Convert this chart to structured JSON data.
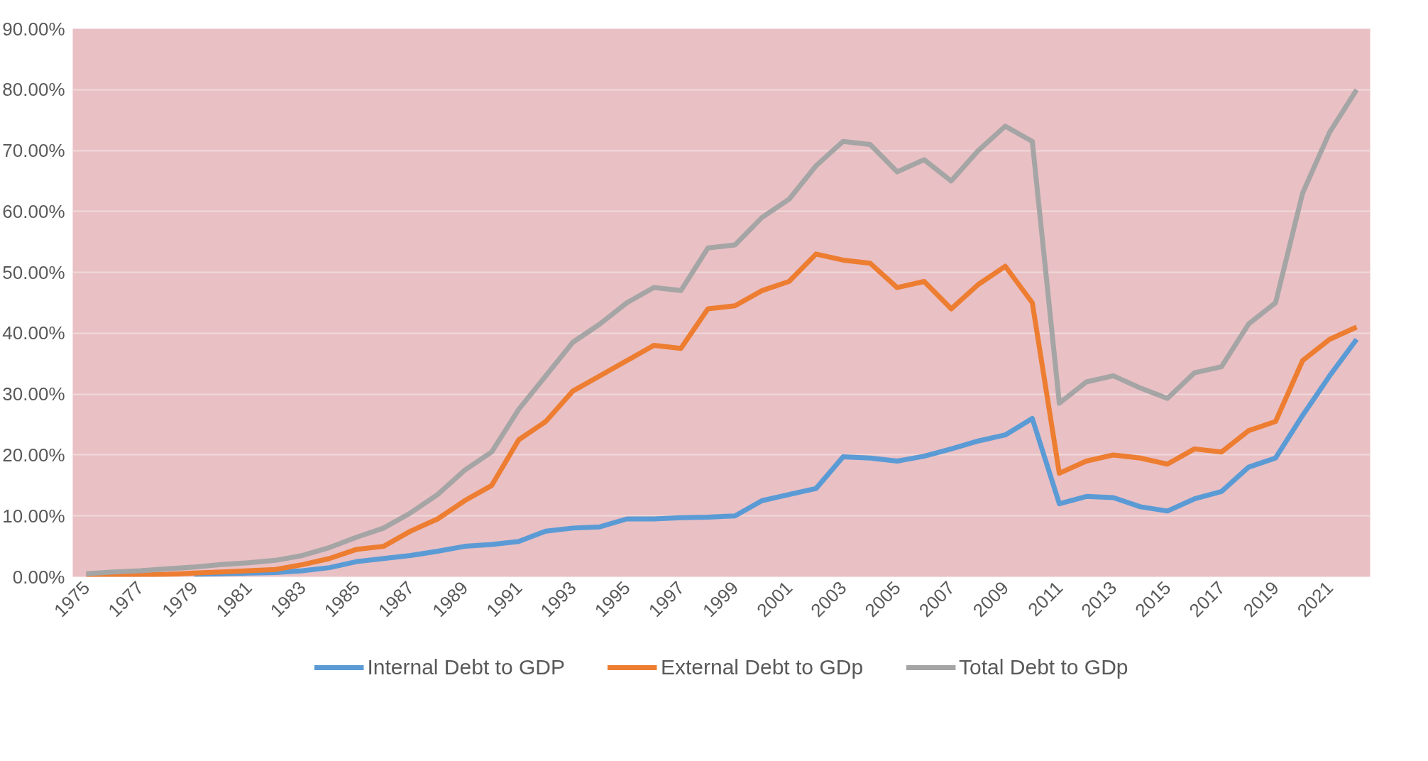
{
  "chart_data": {
    "type": "line",
    "categories": [
      "1975",
      null,
      "1977",
      null,
      "1979",
      null,
      "1981",
      null,
      "1983",
      null,
      "1985",
      null,
      "1987",
      null,
      "1989",
      null,
      "1991",
      null,
      "1993",
      null,
      "1995",
      null,
      "1997",
      null,
      "1999",
      null,
      "2001",
      null,
      "2003",
      null,
      "2005",
      null,
      "2007",
      null,
      "2009",
      null,
      "2011",
      null,
      "2013",
      null,
      "2015",
      null,
      "2017",
      null,
      "2019",
      null,
      "2021",
      null
    ],
    "series": [
      {
        "name": "Internal Debt to GDP",
        "color": "#5b9bd5",
        "values": [
          null,
          null,
          null,
          null,
          0.4,
          0.5,
          0.6,
          0.7,
          1,
          1.5,
          2.5,
          3,
          3.5,
          4.2,
          5,
          5.3,
          5.8,
          7.5,
          8,
          8.2,
          9.5,
          9.5,
          9.7,
          9.8,
          10,
          12.5,
          13.5,
          14.5,
          19.7,
          19.5,
          19,
          19.8,
          21,
          22.3,
          23.3,
          26,
          12,
          13.2,
          13,
          11.5,
          10.8,
          12.8,
          14,
          18,
          19.5,
          26.5,
          33,
          39
        ]
      },
      {
        "name": "External Debt to GDp",
        "color": "#ed7d31",
        "values": [
          0.2,
          0.2,
          0.3,
          0.4,
          0.6,
          0.8,
          1,
          1.2,
          2,
          3,
          4.5,
          5,
          7.5,
          9.5,
          12.5,
          15,
          22.5,
          25.5,
          30.5,
          33,
          35.5,
          38,
          37.5,
          44,
          44.5,
          47,
          48.5,
          53,
          52,
          51.5,
          47.5,
          48.5,
          44,
          48,
          51,
          45,
          17,
          19,
          20,
          19.5,
          18.5,
          21,
          20.5,
          24,
          25.5,
          35.5,
          39,
          41
        ]
      },
      {
        "name": "Total Debt to GDp",
        "color": "#a5a5a5",
        "values": [
          0.5,
          0.8,
          1,
          1.3,
          1.6,
          2,
          2.3,
          2.7,
          3.5,
          4.8,
          6.5,
          8,
          10.5,
          13.5,
          17.5,
          20.5,
          27.5,
          33,
          38.5,
          41.5,
          45,
          47.5,
          47,
          54,
          54.5,
          59,
          62,
          67.5,
          71.5,
          71,
          66.5,
          68.5,
          65,
          70,
          74,
          71.5,
          28.5,
          32,
          33,
          31,
          29.3,
          33.5,
          34.5,
          41.5,
          45,
          63,
          73,
          80
        ]
      }
    ],
    "ylim": [
      0,
      90
    ],
    "yticks": [
      {
        "value": 0,
        "label": "0.00%"
      },
      {
        "value": 10,
        "label": "10.00%"
      },
      {
        "value": 20,
        "label": "20.00%"
      },
      {
        "value": 30,
        "label": "30.00%"
      },
      {
        "value": 40,
        "label": "40.00%"
      },
      {
        "value": 50,
        "label": "50.00%"
      },
      {
        "value": 60,
        "label": "60.00%"
      },
      {
        "value": 70,
        "label": "70.00%"
      },
      {
        "value": 80,
        "label": "80.00%"
      },
      {
        "value": 90,
        "label": "90.00%"
      }
    ],
    "grid": "y",
    "legend": "bottom",
    "marker": "none",
    "line_style": "solid"
  }
}
